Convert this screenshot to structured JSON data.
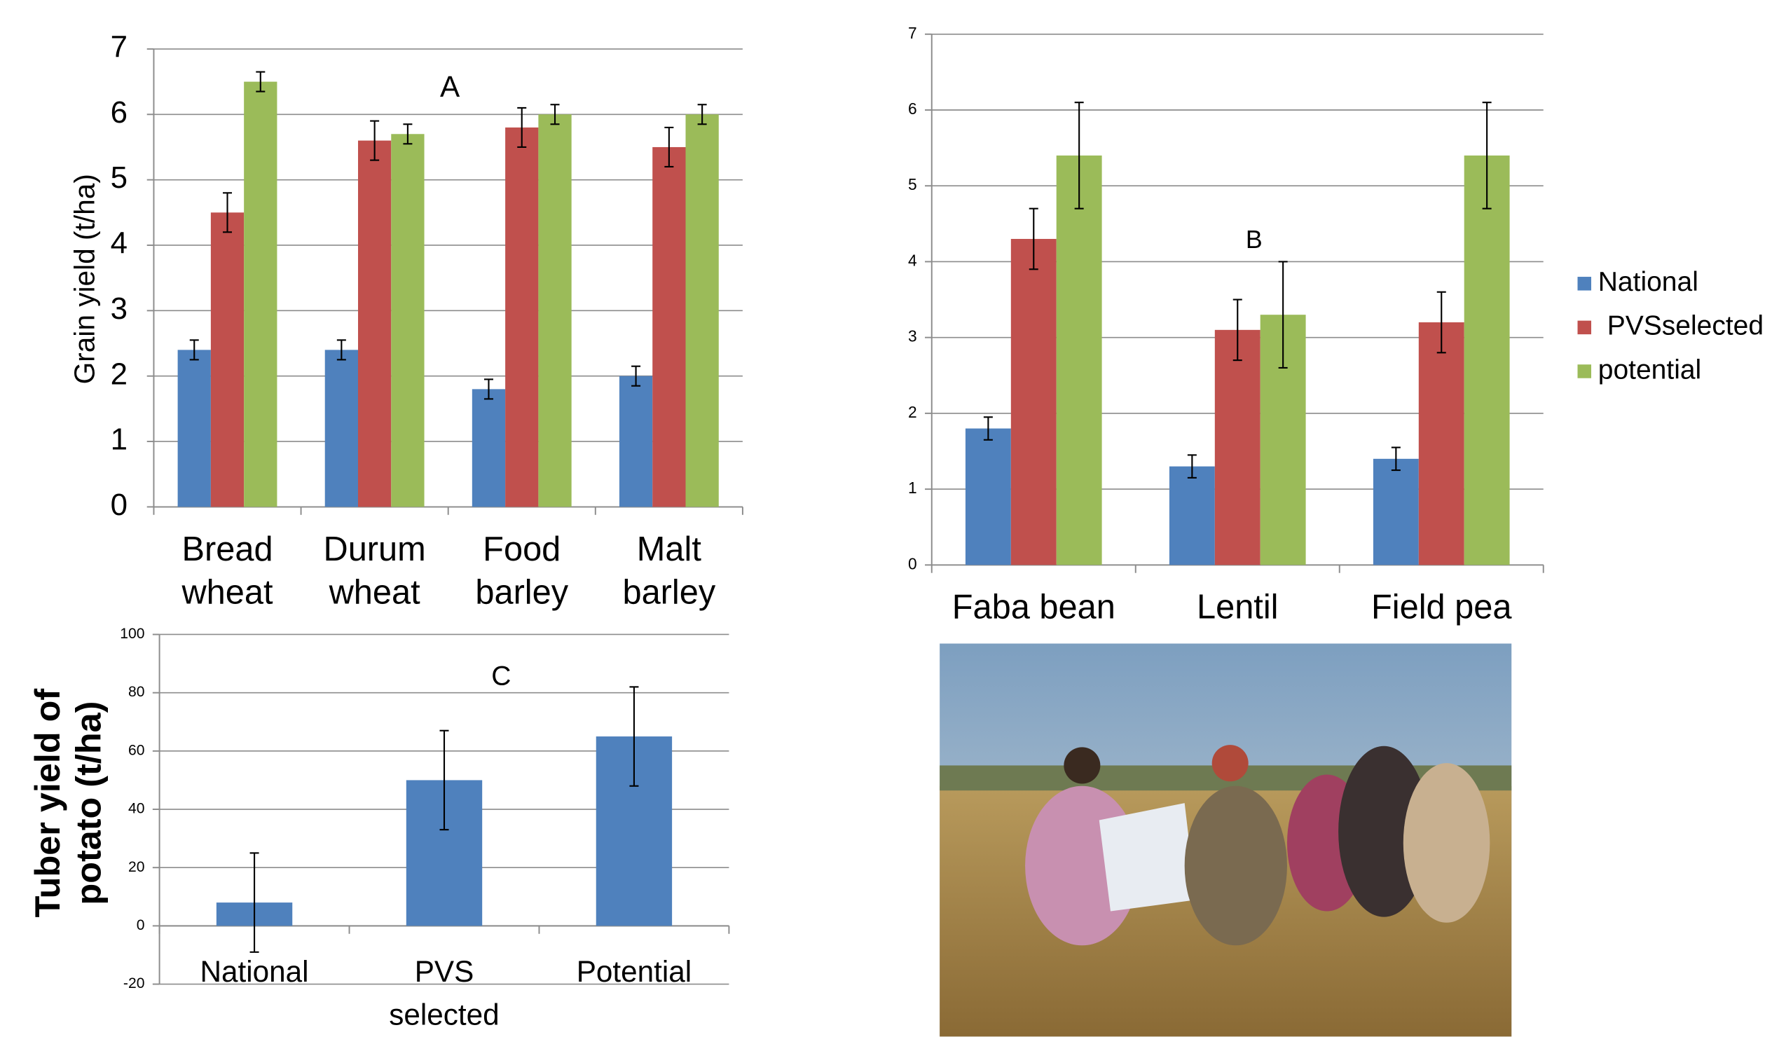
{
  "chart_data": [
    {
      "type": "bar",
      "annotation": "A",
      "ylabel": "Grain yield (t/ha)",
      "categories": [
        "Bread wheat",
        "Durum wheat",
        "Food barley",
        "Malt barley"
      ],
      "series": [
        {
          "color": "#4f81bd",
          "values": [
            2.4,
            2.4,
            1.8,
            2.0
          ],
          "errors": [
            0.15,
            0.15,
            0.15,
            0.15
          ]
        },
        {
          "color": "#c0504d",
          "values": [
            4.5,
            5.6,
            5.8,
            5.5
          ],
          "errors": [
            0.3,
            0.3,
            0.3,
            0.3
          ]
        },
        {
          "color": "#9bbb59",
          "values": [
            6.5,
            5.7,
            6.0,
            6.0
          ],
          "errors": [
            0.15,
            0.15,
            0.15,
            0.15
          ]
        }
      ],
      "ylim": [
        0,
        7
      ],
      "yticks": [
        0,
        1,
        2,
        3,
        4,
        5,
        6,
        7
      ],
      "grid": true
    },
    {
      "type": "bar",
      "annotation": "B",
      "categories": [
        "Faba bean",
        "Lentil",
        "Field pea"
      ],
      "series": [
        {
          "name": "National",
          "color": "#4f81bd",
          "values": [
            1.8,
            1.3,
            1.4
          ],
          "errors": [
            0.15,
            0.15,
            0.15
          ]
        },
        {
          "name": "PVSselected",
          "color": "#c0504d",
          "values": [
            4.3,
            3.1,
            3.2
          ],
          "errors": [
            0.4,
            0.4,
            0.4
          ]
        },
        {
          "name": "potential",
          "color": "#9bbb59",
          "values": [
            5.4,
            3.3,
            5.4
          ],
          "errors": [
            0.7,
            0.7,
            0.7
          ]
        }
      ],
      "ylim": [
        0,
        7
      ],
      "yticks": [
        0,
        1,
        2,
        3,
        4,
        5,
        6,
        7
      ],
      "grid": true,
      "legend": "right"
    },
    {
      "type": "bar",
      "annotation": "C",
      "ylabel": [
        "Tuber yield of",
        "potato  (t/ha)"
      ],
      "categories": [
        "National",
        "PVS selected",
        "Potential"
      ],
      "values": [
        8,
        50,
        65
      ],
      "errors": [
        17,
        17,
        17
      ],
      "color": "#4f81bd",
      "ylim": [
        -20,
        100
      ],
      "yticks": [
        -20,
        0,
        20,
        40,
        60,
        80,
        100
      ],
      "grid": true
    }
  ]
}
